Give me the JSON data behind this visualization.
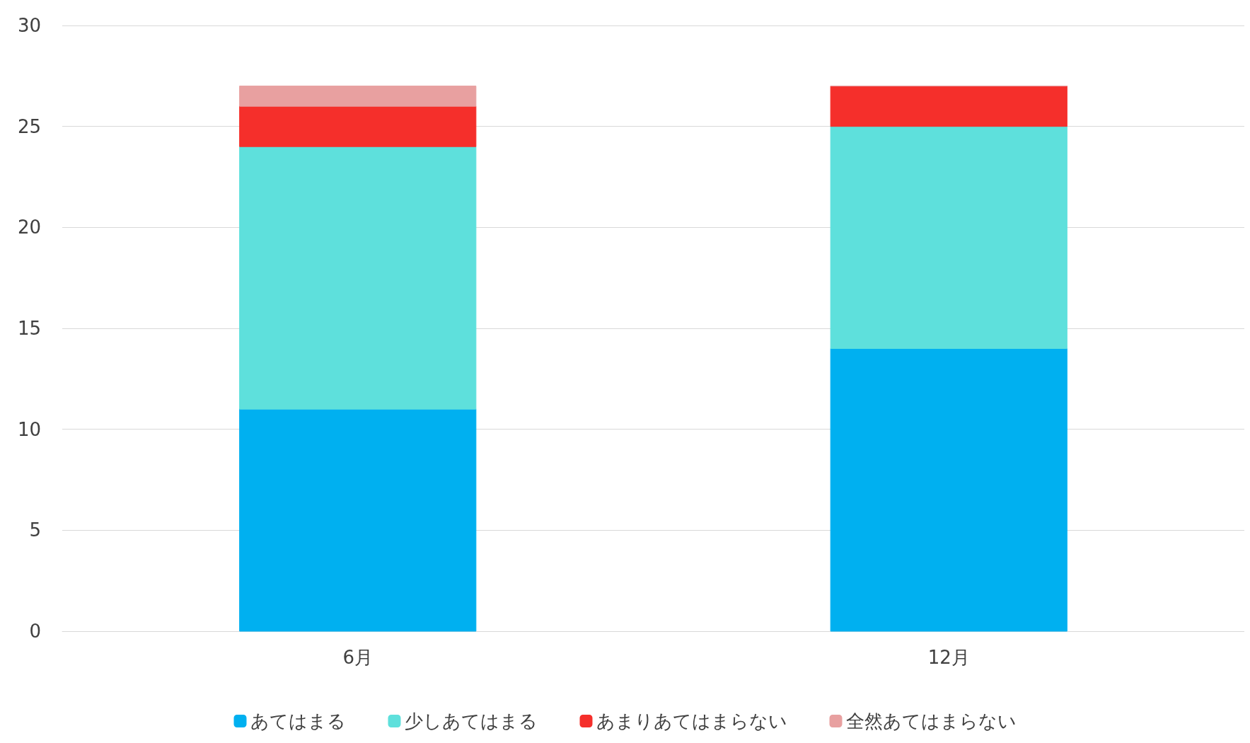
{
  "chart_data": {
    "type": "bar",
    "stacked": true,
    "categories": [
      "6月",
      "12月"
    ],
    "series": [
      {
        "name": "あてはまる",
        "color": "#00b0f0",
        "values": [
          11,
          14
        ]
      },
      {
        "name": "少しあてはまる",
        "color": "#5ee0dc",
        "values": [
          13,
          11
        ]
      },
      {
        "name": "あまりあてはまらない",
        "color": "#f52f2b",
        "values": [
          2,
          2
        ]
      },
      {
        "name": "全然あてはまらない",
        "color": "#e8a0a0",
        "values": [
          1,
          0
        ]
      }
    ],
    "ylim": [
      0,
      30
    ],
    "yticks": [
      0,
      5,
      10,
      15,
      20,
      25,
      30
    ],
    "grid": true,
    "legend": "bottom"
  }
}
